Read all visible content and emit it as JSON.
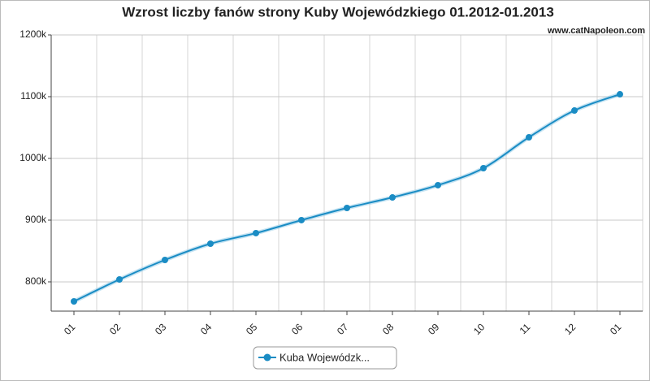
{
  "chart_data": {
    "type": "line",
    "title": "Wzrost liczby fanów strony Kuby Wojewódzkiego 01.2012-01.2013",
    "watermark": "www.catNapoleon.com",
    "categories": [
      "01",
      "02",
      "03",
      "04",
      "05",
      "06",
      "07",
      "08",
      "09",
      "10",
      "11",
      "12",
      "01"
    ],
    "series": [
      {
        "name": "Kuba Wojewódzk...",
        "color": "#1a8cc4",
        "values": [
          768400,
          803900,
          835500,
          861800,
          879000,
          900000,
          919700,
          936800,
          956600,
          984200,
          1034200,
          1077600,
          1103900
        ]
      }
    ],
    "ylim": [
      752600,
      1200000
    ],
    "yticks": [
      {
        "value": 800000,
        "label": "800k"
      },
      {
        "value": 900000,
        "label": "900k"
      },
      {
        "value": 1000000,
        "label": "1000k"
      },
      {
        "value": 1100000,
        "label": "1100k"
      },
      {
        "value": 1200000,
        "label": "1200k"
      }
    ],
    "grid": true
  }
}
